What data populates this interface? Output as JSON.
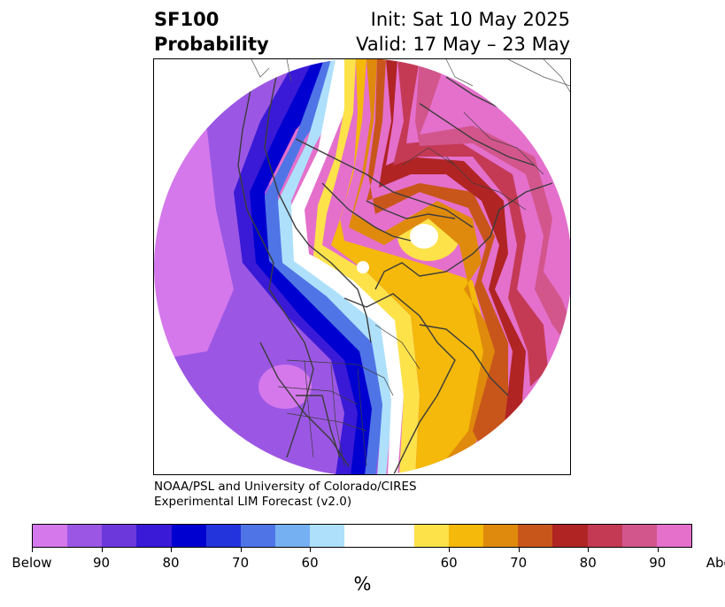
{
  "title": {
    "variable": "SF100",
    "field": "Probability",
    "init": "Init: Sat 10 May 2025",
    "valid": "Valid: 17 May – 23 May"
  },
  "credit": {
    "line1": "NOAA/PSL and University of Colorado/CIRES",
    "line2": "Experimental LIM Forecast (v2.0)"
  },
  "colorbar": {
    "unit": "%",
    "tick_labels": [
      "Below",
      "90",
      "80",
      "70",
      "60",
      "60",
      "70",
      "80",
      "90",
      "Above"
    ],
    "colors": [
      "#d578ec",
      "#9b57e4",
      "#6c38dc",
      "#3a1ad6",
      "#0000d0",
      "#2434dc",
      "#4f74e6",
      "#74b0f2",
      "#aee0fc",
      "#ffffff",
      "#fee24a",
      "#f4b90a",
      "#df8a0c",
      "#c8561a",
      "#b02424",
      "#c43a55",
      "#d2568c",
      "#e470cc"
    ]
  }
}
